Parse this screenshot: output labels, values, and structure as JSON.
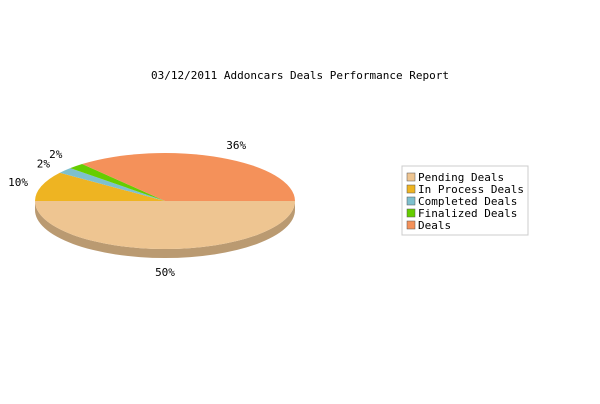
{
  "chart_data": {
    "type": "pie",
    "title": "03/12/2011 Addoncars Deals Performance Report",
    "slices": [
      {
        "label": "Pending Deals",
        "value": 50,
        "display": "50%",
        "color": "#eec591"
      },
      {
        "label": "In Process Deals",
        "value": 10,
        "display": "10%",
        "color": "#eeb422"
      },
      {
        "label": "Completed Deals",
        "value": 2,
        "display": "2%",
        "color": "#7ec0ce"
      },
      {
        "label": "Finalized Deals",
        "value": 2,
        "display": "2%",
        "color": "#66cd00"
      },
      {
        "label": "Deals",
        "value": 36,
        "display": "36%",
        "color": "#f4915a"
      }
    ],
    "legend_position": "right",
    "style": "3d"
  }
}
